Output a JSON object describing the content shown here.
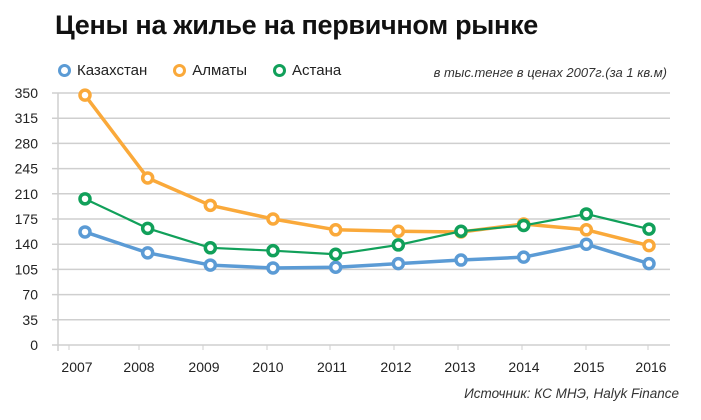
{
  "chart_data": {
    "type": "line",
    "title": "Цены на жилье на первичном рынке",
    "subtitle": "в тыс.тенге в ценах 2007г.(за 1 кв.м)",
    "source": "Источник: КС МНЭ, Halyk Finance",
    "xlabel": "",
    "ylabel": "",
    "categories": [
      "2007",
      "2008",
      "2009",
      "2010",
      "2011",
      "2012",
      "2013",
      "2014",
      "2015",
      "2016"
    ],
    "ylim": [
      0,
      350
    ],
    "yticks": [
      "0",
      "35",
      "70",
      "105",
      "140",
      "175",
      "210",
      "245",
      "280",
      "315",
      "350"
    ],
    "grid": true,
    "legend_position": "top-left",
    "series": [
      {
        "name": "Казахстан",
        "color": "#5B9BD5",
        "values": [
          157,
          128,
          111,
          107,
          108,
          113,
          118,
          122,
          140,
          113
        ]
      },
      {
        "name": "Алматы",
        "color": "#FAA93A",
        "values": [
          347,
          232,
          194,
          175,
          160,
          158,
          157,
          168,
          160,
          138
        ]
      },
      {
        "name": "Астана",
        "color": "#11A05A",
        "values": [
          203,
          162,
          135,
          131,
          126,
          139,
          158,
          166,
          182,
          161
        ]
      }
    ]
  }
}
